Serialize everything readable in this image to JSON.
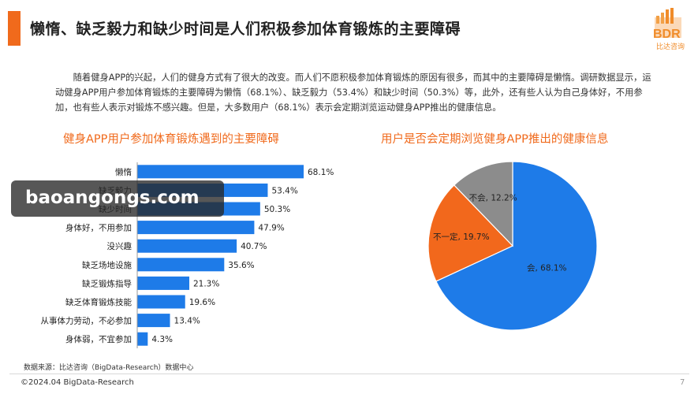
{
  "header": {
    "title": "懒惰、缺乏毅力和缺少时间是人们积极参加体育锻炼的主要障碍",
    "logo_text": "BDR",
    "logo_subtitle": "比达咨询"
  },
  "intro_text": "随着健身APP的兴起，人们的健身方式有了很大的改变。而人们不愿积极参加体育锻炼的原因有很多，而其中的主要障碍是懒惰。调研数据显示，运动健身APP用户参加体育锻炼的主要障碍为懒惰（68.1%）、缺乏毅力（53.4%）和缺少时间（50.3%）等，此外，还有些人认为自己身体好，不用参加，也有些人表示对锻炼不感兴趣。但是，大多数用户（68.1%）表示会定期浏览运动健身APP推出的健康信息。",
  "chart_data": [
    {
      "type": "bar",
      "orientation": "horizontal",
      "title": "健身APP用户参加体育锻炼遇到的主要障碍",
      "categories": [
        "懒惰",
        "缺乏毅力",
        "缺少时间",
        "身体好，不用参加",
        "没兴趣",
        "缺乏场地设施",
        "缺乏锻炼指导",
        "缺乏体育锻炼技能",
        "从事体力劳动，不必参加",
        "身体弱，不宜参加"
      ],
      "values": [
        68.1,
        53.4,
        50.3,
        47.9,
        40.7,
        35.6,
        21.3,
        19.6,
        13.4,
        4.3
      ],
      "labels": [
        "68.1%",
        "53.4%",
        "50.3%",
        "47.9%",
        "40.7%",
        "35.6%",
        "21.3%",
        "19.6%",
        "13.4%",
        "4.3%"
      ],
      "color": "#1e7be8"
    },
    {
      "type": "pie",
      "title": "用户是否会定期浏览健身APP推出的健康信息",
      "slices": [
        {
          "label": "会, 68.1%",
          "value": 68.1,
          "color": "#1e7be8"
        },
        {
          "label": "不一定, 19.7%",
          "value": 19.7,
          "color": "#f2681c"
        },
        {
          "label": "不会, 12.2%",
          "value": 12.2,
          "color": "#8c8c8c"
        }
      ]
    }
  ],
  "footer": {
    "source": "数据来源：比达咨询（BigData-Research）数据中心",
    "copyright": "©2024.04 BigData-Research",
    "page_number": "7"
  },
  "watermark": "baoangongs.com"
}
